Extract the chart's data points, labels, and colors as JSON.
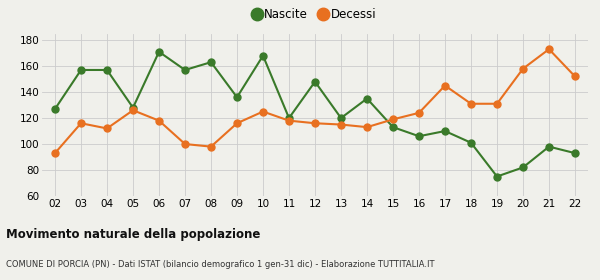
{
  "years": [
    "02",
    "03",
    "04",
    "05",
    "06",
    "07",
    "08",
    "09",
    "10",
    "11",
    "12",
    "13",
    "14",
    "15",
    "16",
    "17",
    "18",
    "19",
    "20",
    "21",
    "22"
  ],
  "nascite": [
    127,
    157,
    157,
    128,
    171,
    157,
    163,
    136,
    168,
    120,
    148,
    120,
    135,
    113,
    106,
    110,
    101,
    75,
    82,
    98,
    93
  ],
  "decessi": [
    93,
    116,
    112,
    126,
    118,
    100,
    98,
    116,
    125,
    118,
    116,
    115,
    113,
    119,
    124,
    145,
    131,
    131,
    158,
    173,
    152
  ],
  "nascite_color": "#3a7a2a",
  "decessi_color": "#e87020",
  "bg_color": "#f0f0eb",
  "grid_color": "#cccccc",
  "ylim": [
    60,
    185
  ],
  "yticks": [
    60,
    80,
    100,
    120,
    140,
    160,
    180
  ],
  "title": "Movimento naturale della popolazione",
  "subtitle": "COMUNE DI PORCIA (PN) - Dati ISTAT (bilancio demografico 1 gen-31 dic) - Elaborazione TUTTITALIA.IT",
  "legend_nascite": "Nascite",
  "legend_decessi": "Decessi",
  "marker_size": 5,
  "line_width": 1.5
}
